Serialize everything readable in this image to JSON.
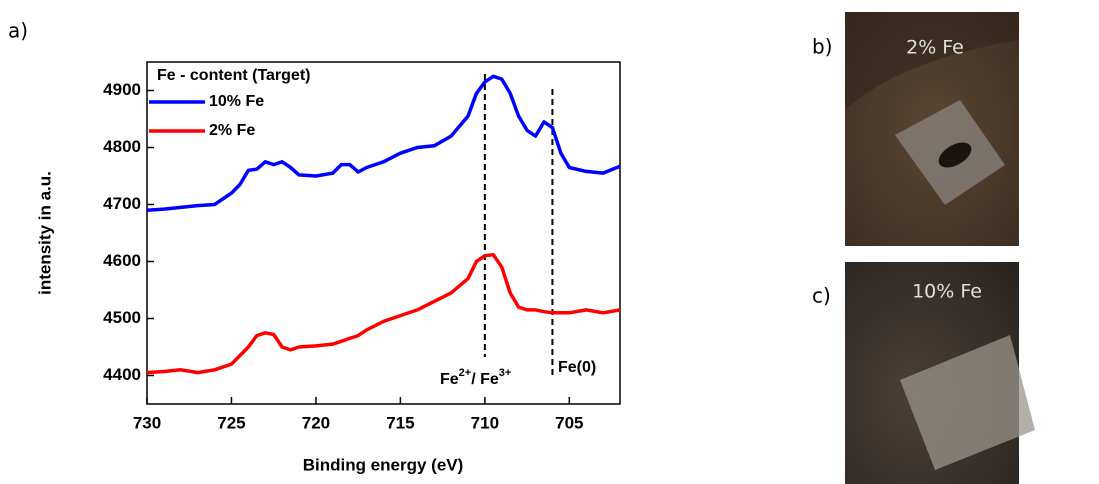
{
  "chart_data": {
    "type": "line",
    "panel_label": "a)",
    "xlabel": "Binding energy (eV)",
    "ylabel": "intensity in a.u.",
    "x": [
      730,
      729,
      728,
      727,
      726,
      725,
      724.5,
      724,
      723.5,
      723,
      722.5,
      722,
      721.5,
      721,
      720,
      719,
      718.5,
      718,
      717.5,
      717,
      716,
      715,
      714,
      713,
      712,
      711,
      710.5,
      710,
      709.5,
      709,
      708.5,
      708,
      707.5,
      707,
      706.5,
      706,
      705.5,
      705,
      704,
      703,
      702
    ],
    "series": [
      {
        "name": "10% Fe",
        "color": "#0000ff",
        "values": [
          4690,
          4692,
          4695,
          4698,
          4700,
          4720,
          4735,
          4760,
          4762,
          4775,
          4770,
          4775,
          4765,
          4752,
          4750,
          4755,
          4770,
          4770,
          4757,
          4765,
          4775,
          4790,
          4800,
          4803,
          4820,
          4855,
          4895,
          4915,
          4925,
          4920,
          4895,
          4855,
          4830,
          4820,
          4845,
          4835,
          4790,
          4765,
          4758,
          4755,
          4767
        ]
      },
      {
        "name": "2% Fe",
        "color": "#ff0000",
        "values": [
          4405,
          4407,
          4410,
          4405,
          4410,
          4420,
          4435,
          4450,
          4470,
          4475,
          4472,
          4450,
          4445,
          4450,
          4452,
          4455,
          4460,
          4465,
          4470,
          4480,
          4495,
          4505,
          4515,
          4530,
          4545,
          4570,
          4600,
          4610,
          4612,
          4590,
          4545,
          4520,
          4515,
          4515,
          4512,
          4510,
          4510,
          4510,
          4515,
          4510,
          4515
        ]
      }
    ],
    "xlim": [
      730,
      702
    ],
    "xticks": [
      730,
      725,
      720,
      715,
      710,
      705
    ],
    "ylim": [
      4350,
      4950
    ],
    "yticks": [
      4400,
      4500,
      4600,
      4700,
      4800,
      4900
    ],
    "legend_title": "Fe - content (Target)",
    "legend": "upper left",
    "vlines": [
      710,
      706
    ],
    "annotations": [
      {
        "parts": [
          "Fe",
          "2+",
          "/ Fe",
          "3+"
        ]
      },
      {
        "parts": [
          "Fe(0)"
        ]
      }
    ]
  },
  "images": [
    {
      "panel_label": "b)",
      "label": "2% Fe"
    },
    {
      "panel_label": "c)",
      "label": "10% Fe"
    }
  ]
}
